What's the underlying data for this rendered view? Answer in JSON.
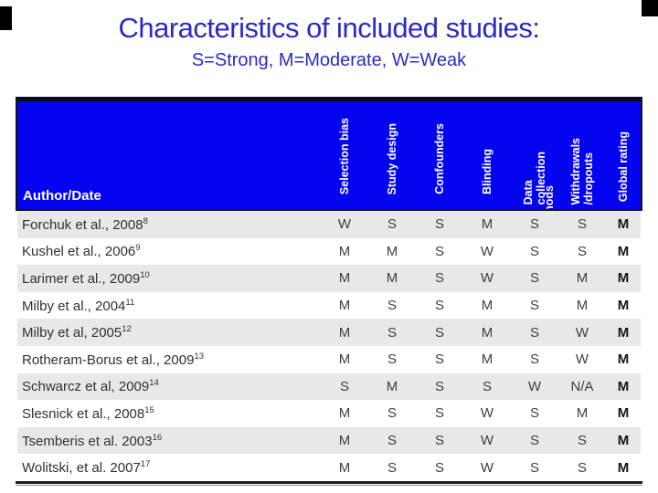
{
  "slide": {
    "title": "Characteristics of included studies:",
    "subtitle": "S=Strong, M=Moderate, W=Weak"
  },
  "colors": {
    "header_bg": "#0404ef",
    "title_blue": "#2b2bc3",
    "row_stripe": "#e8e8e8"
  },
  "table": {
    "author_header": "Author/Date",
    "columns": [
      {
        "label": "Selection bias"
      },
      {
        "label": "Study design"
      },
      {
        "label": "Confounders"
      },
      {
        "label": "Blinding"
      },
      {
        "label": "Data collection methods",
        "display_lines": "Data\ncollection",
        "display_overflow": "methods"
      },
      {
        "label": "Withdrawals\n/dropouts"
      },
      {
        "label": "Global rating"
      }
    ],
    "rows": [
      {
        "author": "Forchuk et al., 2008",
        "ref": "8",
        "ratings": [
          "W",
          "S",
          "S",
          "M",
          "S",
          "S",
          "M"
        ]
      },
      {
        "author": "Kushel et al., 2006",
        "ref": "9",
        "ratings": [
          "M",
          "M",
          "S",
          "W",
          "S",
          "S",
          "M"
        ]
      },
      {
        "author": "Larimer et al., 2009",
        "ref": "10",
        "ratings": [
          "M",
          "M",
          "S",
          "W",
          "S",
          "M",
          "M"
        ]
      },
      {
        "author": "Milby et al., 2004",
        "ref": "11",
        "ratings": [
          "M",
          "S",
          "S",
          "M",
          "S",
          "M",
          "M"
        ]
      },
      {
        "author": "Milby et al, 2005",
        "ref": "12",
        "ratings": [
          "M",
          "S",
          "S",
          "M",
          "S",
          "W",
          "M"
        ]
      },
      {
        "author": "Rotheram-Borus et al., 2009",
        "ref": "13",
        "ratings": [
          "M",
          "S",
          "S",
          "M",
          "S",
          "W",
          "M"
        ]
      },
      {
        "author": "Schwarcz et al, 2009",
        "ref": "14",
        "ratings": [
          "S",
          "M",
          "S",
          "S",
          "W",
          "N/A",
          "M"
        ]
      },
      {
        "author": "Slesnick et al., 2008",
        "ref": "15",
        "ratings": [
          "M",
          "S",
          "S",
          "W",
          "S",
          "M",
          "M"
        ]
      },
      {
        "author": "Tsemberis et al. 2003",
        "ref": "16",
        "ratings": [
          "M",
          "S",
          "S",
          "W",
          "S",
          "S",
          "M"
        ]
      },
      {
        "author": "Wolitski, et al. 2007",
        "ref": "17",
        "ratings": [
          "M",
          "S",
          "S",
          "W",
          "S",
          "S",
          "M"
        ]
      }
    ]
  }
}
